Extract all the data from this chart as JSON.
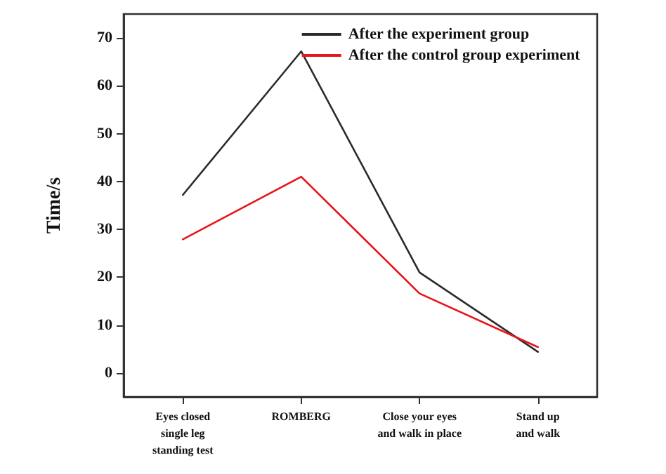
{
  "chart_data": {
    "type": "line",
    "ylabel": "Time/s",
    "categories": [
      "Eyes closed\nsingle leg\nstanding test",
      "ROMBERG",
      "Close your eyes\nand walk in place",
      "Stand up\nand walk"
    ],
    "series": [
      {
        "name": "After the experiment group",
        "color": "#2b2b2b",
        "values": [
          37.2,
          67.2,
          21,
          4.4
        ]
      },
      {
        "name": "After the control group experiment",
        "color": "#e8141b",
        "values": [
          27.9,
          41,
          16.6,
          5.4
        ]
      }
    ],
    "ylim": [
      -5,
      75
    ],
    "yticks": [
      0,
      10,
      20,
      30,
      40,
      50,
      60,
      70
    ],
    "grid": false,
    "legend": "top right",
    "marker": "none",
    "line_style": "solid"
  }
}
